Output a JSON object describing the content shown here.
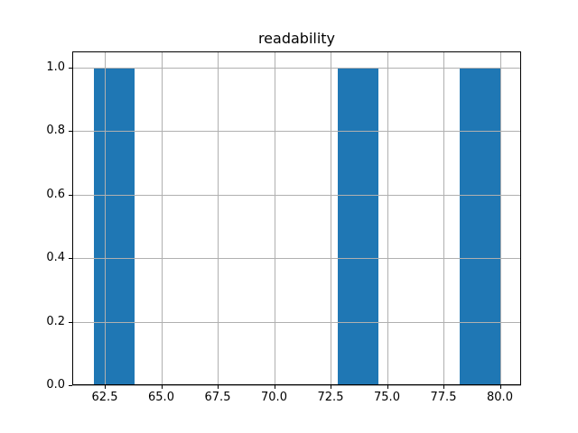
{
  "colors": {
    "bar": "#1f77b4",
    "grid": "#b0b0b0",
    "spine": "#000000",
    "background": "#ffffff"
  },
  "chart_data": {
    "type": "bar",
    "subtype": "histogram",
    "title": "readability",
    "xlabel": "",
    "ylabel": "",
    "xlim": [
      61.06,
      80.94
    ],
    "ylim": [
      0,
      1.05
    ],
    "xticks": [
      62.5,
      65.0,
      67.5,
      70.0,
      72.5,
      75.0,
      77.5,
      80.0
    ],
    "yticks": [
      0.0,
      0.2,
      0.4,
      0.6,
      0.8,
      1.0
    ],
    "grid": true,
    "legend": false,
    "bin_edges": [
      62.0,
      63.8,
      65.6,
      67.4,
      69.2,
      71.0,
      72.8,
      74.6,
      76.4,
      78.2,
      80.0
    ],
    "counts": [
      1,
      0,
      0,
      0,
      0,
      0,
      1,
      0,
      0,
      1
    ],
    "bars": [
      {
        "x0": 62.0,
        "x1": 63.8,
        "height": 1.0
      },
      {
        "x0": 72.8,
        "x1": 74.6,
        "height": 1.0
      },
      {
        "x0": 78.2,
        "x1": 80.0,
        "height": 1.0
      }
    ]
  }
}
